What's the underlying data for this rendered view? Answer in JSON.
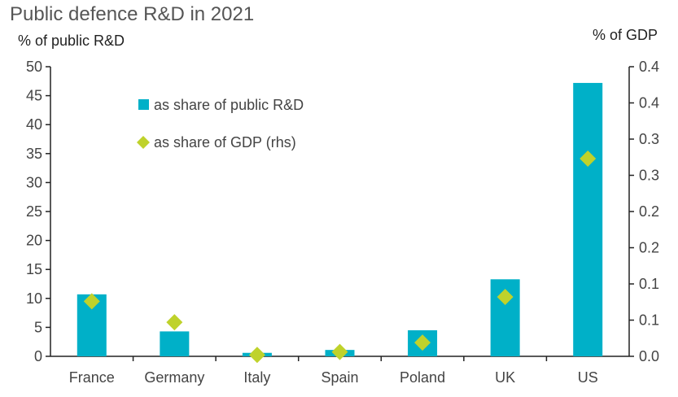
{
  "chart_data": {
    "type": "bar",
    "title": "Public defence R&D in 2021",
    "ylabel_left": "% of public R&D",
    "ylabel_right": "% of GDP",
    "categories": [
      "France",
      "Germany",
      "Italy",
      "Spain",
      "Poland",
      "UK",
      "US"
    ],
    "ylim_left": [
      0,
      50
    ],
    "ylim_right": [
      0,
      0.4
    ],
    "left_ticks": [
      "0",
      "5",
      "10",
      "15",
      "20",
      "25",
      "30",
      "35",
      "40",
      "45",
      "50"
    ],
    "right_ticks": [
      "0.0",
      "0.1",
      "0.1",
      "0.2",
      "0.2",
      "0.3",
      "0.3",
      "0.4",
      "0.4"
    ],
    "series": [
      {
        "name": "as share of public R&D",
        "kind": "bar",
        "axis": "left",
        "color": "#00b0c8",
        "values": [
          10.7,
          4.3,
          0.6,
          1.1,
          4.5,
          13.3,
          47.2
        ]
      },
      {
        "name": "as share of GDP (rhs)",
        "kind": "marker",
        "marker": "diamond",
        "axis": "right",
        "color": "#bfd22b",
        "values": [
          0.076,
          0.047,
          0.002,
          0.006,
          0.019,
          0.082,
          0.273
        ]
      }
    ],
    "grid": false,
    "legend_position": "top-left"
  }
}
